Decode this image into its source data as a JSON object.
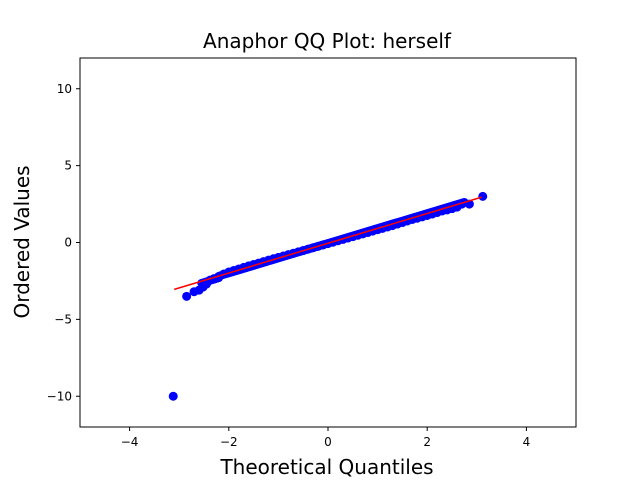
{
  "chart_data": {
    "type": "scatter",
    "title": "Anaphor QQ Plot: herself",
    "xlabel": "Theoretical Quantiles",
    "ylabel": "Ordered Values",
    "xlim": [
      -5,
      5
    ],
    "ylim": [
      -12,
      12
    ],
    "xticks": [
      -4,
      -2,
      0,
      2,
      4
    ],
    "yticks": [
      -10,
      -5,
      0,
      5,
      10
    ],
    "grid": false,
    "colors": {
      "points": "#0000ff",
      "fit_line": "#ff0000"
    },
    "fit_line": {
      "x": [
        -3.1,
        3.1
      ],
      "y": [
        -3.05,
        2.95
      ]
    },
    "series": [
      {
        "x": [
          -3.12,
          -2.85,
          -2.7,
          -2.6,
          -2.52,
          -2.45,
          -2.38,
          -2.3,
          -2.2,
          -2.1,
          -2.0,
          -1.9,
          -1.8,
          -1.7,
          -1.6,
          -1.5,
          -1.4,
          -1.3,
          -1.2,
          -1.1,
          -1.0,
          -0.9,
          -0.8,
          -0.7,
          -0.6,
          -0.5,
          -0.4,
          -0.3,
          -0.2,
          -0.1,
          0.0,
          0.1,
          0.2,
          0.3,
          0.4,
          0.5,
          0.6,
          0.7,
          0.8,
          0.9,
          1.0,
          1.1,
          1.2,
          1.3,
          1.4,
          1.5,
          1.6,
          1.7,
          1.8,
          1.9,
          2.0,
          2.1,
          2.2,
          2.3,
          2.4,
          2.5,
          2.6,
          2.7,
          2.85,
          3.12
        ],
        "y": [
          -10.0,
          -3.5,
          -3.2,
          -3.1,
          -2.9,
          -2.7,
          -2.45,
          -2.35,
          -2.2,
          -2.05,
          -1.92,
          -1.82,
          -1.72,
          -1.62,
          -1.52,
          -1.43,
          -1.34,
          -1.24,
          -1.15,
          -1.06,
          -0.97,
          -0.88,
          -0.79,
          -0.7,
          -0.61,
          -0.52,
          -0.43,
          -0.34,
          -0.25,
          -0.16,
          -0.07,
          0.02,
          0.11,
          0.2,
          0.29,
          0.38,
          0.47,
          0.56,
          0.65,
          0.74,
          0.83,
          0.92,
          1.01,
          1.1,
          1.2,
          1.3,
          1.4,
          1.5,
          1.58,
          1.67,
          1.76,
          1.85,
          1.95,
          2.05,
          2.12,
          2.2,
          2.3,
          2.5,
          2.5,
          3.0
        ]
      }
    ]
  }
}
